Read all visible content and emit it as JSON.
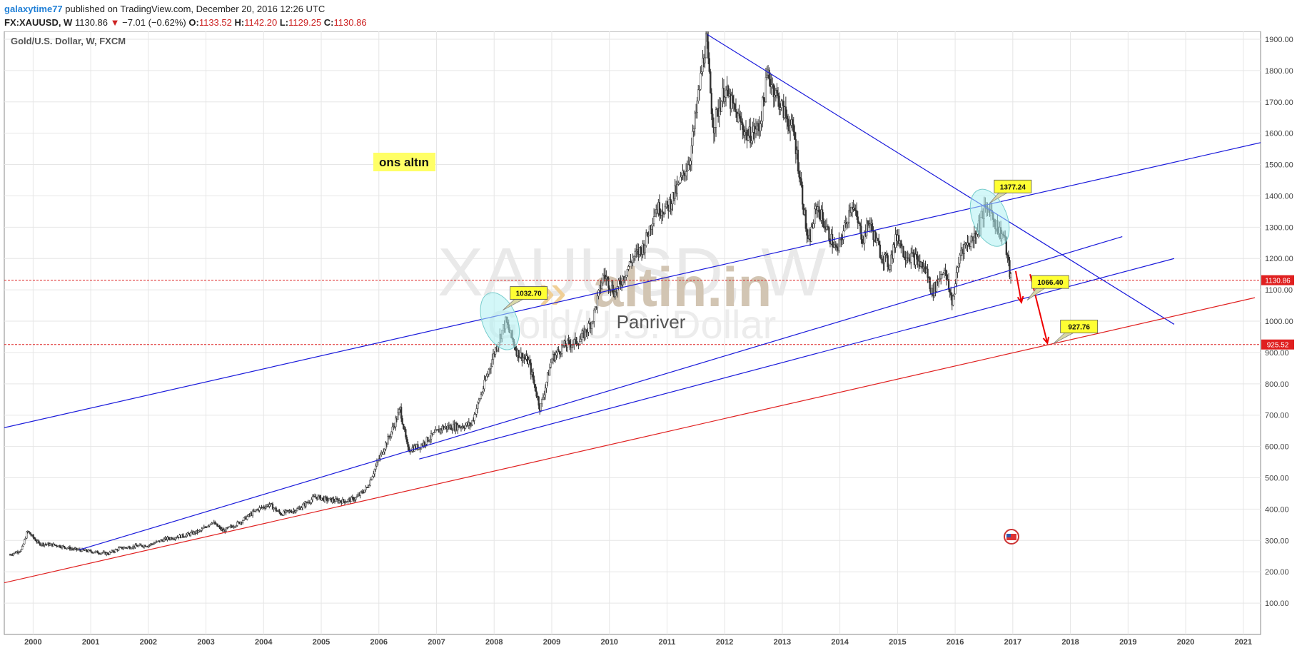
{
  "header": {
    "username": "galaxytime77",
    "published_text": "published on TradingView.com, December 20, 2016 12:26 UTC",
    "symbol": "FX:XAUUSD, W",
    "last": "1130.86",
    "change": "−7.01 (−0.62%)",
    "open_label": "O:",
    "open": "1133.52",
    "high_label": "H:",
    "high": "1142.20",
    "low_label": "L:",
    "low": "1129.25",
    "close_label": "C:",
    "close": "1130.86"
  },
  "chart_data": {
    "type": "candlestick",
    "title": "Gold/U.S. Dollar, W, FXCM",
    "x_range": [
      1999.5,
      2021.3
    ],
    "y_range": [
      0,
      1925
    ],
    "x_ticks": [
      "2000",
      "2001",
      "2002",
      "2003",
      "2004",
      "2005",
      "2006",
      "2007",
      "2008",
      "2009",
      "2010",
      "2011",
      "2012",
      "2013",
      "2014",
      "2015",
      "2016",
      "2017",
      "2018",
      "2019",
      "2020",
      "2021"
    ],
    "y_ticks": [
      "100.00",
      "200.00",
      "300.00",
      "400.00",
      "500.00",
      "600.00",
      "700.00",
      "800.00",
      "900.00",
      "1000.00",
      "1100.00",
      "1200.00",
      "1300.00",
      "1400.00",
      "1500.00",
      "1600.00",
      "1700.00",
      "1800.00",
      "1900.00"
    ],
    "price_series": [
      [
        1999.6,
        255
      ],
      [
        1999.8,
        270
      ],
      [
        1999.9,
        330
      ],
      [
        2000.1,
        290
      ],
      [
        2000.4,
        285
      ],
      [
        2000.7,
        272
      ],
      [
        2001.0,
        265
      ],
      [
        2001.3,
        258
      ],
      [
        2001.5,
        275
      ],
      [
        2001.8,
        282
      ],
      [
        2002.0,
        285
      ],
      [
        2002.3,
        305
      ],
      [
        2002.6,
        315
      ],
      [
        2002.9,
        330
      ],
      [
        2003.1,
        360
      ],
      [
        2003.3,
        330
      ],
      [
        2003.6,
        360
      ],
      [
        2003.9,
        400
      ],
      [
        2004.1,
        415
      ],
      [
        2004.3,
        385
      ],
      [
        2004.6,
        400
      ],
      [
        2004.9,
        440
      ],
      [
        2005.1,
        430
      ],
      [
        2005.4,
        425
      ],
      [
        2005.6,
        435
      ],
      [
        2005.8,
        470
      ],
      [
        2006.0,
        560
      ],
      [
        2006.2,
        640
      ],
      [
        2006.37,
        720
      ],
      [
        2006.5,
        590
      ],
      [
        2006.7,
        600
      ],
      [
        2006.9,
        630
      ],
      [
        2007.1,
        660
      ],
      [
        2007.4,
        665
      ],
      [
        2007.6,
        670
      ],
      [
        2007.8,
        780
      ],
      [
        2008.0,
        900
      ],
      [
        2008.2,
        1000
      ],
      [
        2008.4,
        900
      ],
      [
        2008.6,
        870
      ],
      [
        2008.8,
        720
      ],
      [
        2009.0,
        880
      ],
      [
        2009.2,
        920
      ],
      [
        2009.5,
        940
      ],
      [
        2009.7,
        1000
      ],
      [
        2009.9,
        1150
      ],
      [
        2010.1,
        1090
      ],
      [
        2010.4,
        1200
      ],
      [
        2010.6,
        1240
      ],
      [
        2010.8,
        1360
      ],
      [
        2011.0,
        1360
      ],
      [
        2011.2,
        1430
      ],
      [
        2011.4,
        1520
      ],
      [
        2011.6,
        1800
      ],
      [
        2011.68,
        1900
      ],
      [
        2011.8,
        1620
      ],
      [
        2012.0,
        1740
      ],
      [
        2012.2,
        1660
      ],
      [
        2012.4,
        1590
      ],
      [
        2012.6,
        1620
      ],
      [
        2012.75,
        1790
      ],
      [
        2012.9,
        1720
      ],
      [
        2013.0,
        1680
      ],
      [
        2013.2,
        1600
      ],
      [
        2013.3,
        1470
      ],
      [
        2013.45,
        1240
      ],
      [
        2013.6,
        1370
      ],
      [
        2013.8,
        1280
      ],
      [
        2013.95,
        1220
      ],
      [
        2014.1,
        1310
      ],
      [
        2014.2,
        1380
      ],
      [
        2014.4,
        1260
      ],
      [
        2014.5,
        1320
      ],
      [
        2014.7,
        1220
      ],
      [
        2014.85,
        1180
      ],
      [
        2015.0,
        1280
      ],
      [
        2015.1,
        1220
      ],
      [
        2015.3,
        1200
      ],
      [
        2015.5,
        1160
      ],
      [
        2015.6,
        1090
      ],
      [
        2015.8,
        1170
      ],
      [
        2015.95,
        1060
      ],
      [
        2016.1,
        1230
      ],
      [
        2016.3,
        1260
      ],
      [
        2016.5,
        1350
      ],
      [
        2016.6,
        1360
      ],
      [
        2016.75,
        1290
      ],
      [
        2016.85,
        1270
      ],
      [
        2016.95,
        1150
      ],
      [
        2016.97,
        1131
      ]
    ],
    "annotations": {
      "ons_label": "ons altın",
      "target_labels": [
        "1032.70",
        "1377.24",
        "1066.40",
        "927.76"
      ],
      "price_tags": [
        "1130.86",
        "925.52"
      ],
      "watermark_symbol": "XAUUSD, W",
      "watermark_name": "Gold/U.S. Dollar",
      "watermark_brand": "altin.in",
      "signature": "Panriver"
    },
    "colors": {
      "trend_blue": "#1a1adb",
      "support_red": "#e02020",
      "candle": "#333333",
      "price_tag": "#e02020",
      "callout": "#ffff33",
      "ellipse": "#aef0f2"
    },
    "trend_lines": [
      {
        "color": "blue",
        "points": [
          [
            1999.5,
            660
          ],
          [
            2021.3,
            1570
          ]
        ]
      },
      {
        "color": "blue",
        "points": [
          [
            2011.7,
            1915
          ],
          [
            2019.8,
            990
          ]
        ]
      },
      {
        "color": "blue",
        "points": [
          [
            2000.8,
            270
          ],
          [
            2018.9,
            1270
          ]
        ]
      },
      {
        "color": "blue",
        "points": [
          [
            2006.7,
            560
          ],
          [
            2019.8,
            1200
          ]
        ]
      },
      {
        "color": "red",
        "points": [
          [
            1999.5,
            165
          ],
          [
            2021.2,
            1075
          ]
        ]
      }
    ],
    "horizontal_lines": [
      1130.86,
      925.52
    ],
    "ellipses": [
      [
        2008.1,
        1000
      ],
      [
        2016.6,
        1330
      ]
    ],
    "arrows": [
      [
        [
          2017.05,
          1160
        ],
        [
          2017.15,
          1060
        ]
      ],
      [
        [
          2017.3,
          1150
        ],
        [
          2017.6,
          930
        ]
      ]
    ],
    "callout_points": [
      {
        "label": "1032.70",
        "tip": [
          2008.15,
          1035
        ],
        "box": [
          2008.6,
          1090
        ]
      },
      {
        "label": "1377.24",
        "tip": [
          2016.6,
          1377
        ],
        "box": [
          2017.0,
          1430
        ]
      },
      {
        "label": "1066.40",
        "tip": [
          2017.25,
          1067
        ],
        "box": [
          2017.65,
          1125
        ]
      },
      {
        "label": "927.76",
        "tip": [
          2017.7,
          928
        ],
        "box": [
          2018.15,
          983
        ]
      }
    ]
  }
}
